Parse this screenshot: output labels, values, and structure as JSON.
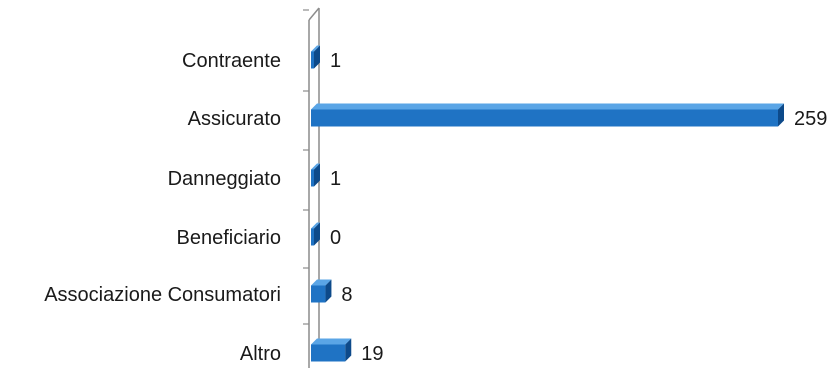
{
  "chart_data": {
    "type": "bar",
    "orientation": "horizontal",
    "style": "3d",
    "categories": [
      "Contraente",
      "Assicurato",
      "Danneggiato",
      "Beneficiario",
      "Associazione Consumatori",
      "Altro"
    ],
    "values": [
      1,
      259,
      1,
      0,
      8,
      19
    ],
    "title": "",
    "xlabel": "",
    "ylabel": "",
    "xlim": [
      0,
      259
    ],
    "grid": false,
    "legend": "none",
    "colors": {
      "bar_front": "#1f73c4",
      "bar_top": "#5aa5e6",
      "bar_side": "#0d4a8a",
      "axis": "#8c8c8c"
    }
  }
}
